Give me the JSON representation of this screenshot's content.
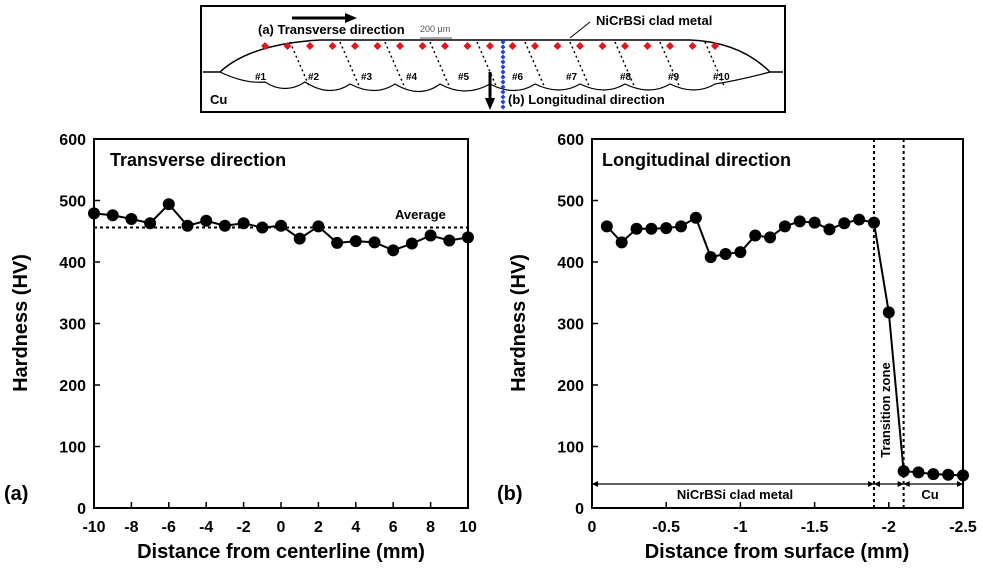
{
  "schematic": {
    "transverse_label": "(a) Transverse direction",
    "scale_label": "200 μm",
    "clad_label": "NiCrBSi clad metal",
    "substrate_label": "Cu",
    "longitudinal_label": "(b) Longitudinal direction",
    "bead_labels": [
      "#1",
      "#2",
      "#3",
      "#4",
      "#5",
      "#6",
      "#7",
      "#8",
      "#9",
      "#10"
    ]
  },
  "chart_data": [
    {
      "type": "line",
      "panel_label": "(a)",
      "title": "Transverse direction",
      "xlabel": "Distance from centerline (mm)",
      "ylabel": "Hardness (HV)",
      "xlim": [
        -10,
        10
      ],
      "ylim": [
        0,
        600
      ],
      "xticks": [
        "-10",
        "-8",
        "-6",
        "-4",
        "-2",
        "0",
        "2",
        "4",
        "6",
        "8",
        "10"
      ],
      "yticks": [
        "0",
        "100",
        "200",
        "300",
        "400",
        "500",
        "600"
      ],
      "x": [
        -10,
        -9,
        -8,
        -7,
        -6,
        -5,
        -4,
        -3,
        -2,
        -1,
        0,
        1,
        2,
        3,
        4,
        5,
        6,
        7,
        8,
        9,
        10
      ],
      "y": [
        479,
        476,
        470,
        463,
        494,
        459,
        467,
        459,
        463,
        456,
        459,
        438,
        458,
        431,
        434,
        432,
        419,
        430,
        443,
        435,
        440
      ],
      "average": {
        "label": "Average",
        "value": 456
      },
      "grid": false
    },
    {
      "type": "line",
      "panel_label": "(b)",
      "title": "Longitudinal direction",
      "xlabel": "Distance from surface (mm)",
      "ylabel": "Hardness (HV)",
      "xlim": [
        0,
        -2.5
      ],
      "ylim": [
        0,
        600
      ],
      "xticks": [
        "0",
        "-0.5",
        "-1",
        "-1.5",
        "-2",
        "-2.5"
      ],
      "yticks": [
        "0",
        "100",
        "200",
        "300",
        "400",
        "500",
        "600"
      ],
      "x": [
        -0.1,
        -0.2,
        -0.3,
        -0.4,
        -0.5,
        -0.6,
        -0.7,
        -0.8,
        -0.9,
        -1.0,
        -1.1,
        -1.2,
        -1.3,
        -1.4,
        -1.5,
        -1.6,
        -1.7,
        -1.8,
        -1.9,
        -2.0,
        -2.1,
        -2.2,
        -2.3,
        -2.4,
        -2.5
      ],
      "y": [
        458,
        432,
        454,
        454,
        455,
        458,
        472,
        408,
        413,
        416,
        443,
        440,
        458,
        466,
        464,
        453,
        463,
        469,
        464,
        318,
        60,
        58,
        55,
        54,
        53
      ],
      "zones": [
        {
          "label": "NiCrBSi clad metal",
          "from": 0,
          "to": -1.9
        },
        {
          "label": "Transition zone",
          "from": -1.9,
          "to": -2.1
        },
        {
          "label": "Cu",
          "from": -2.1,
          "to": -2.5
        }
      ],
      "grid": false
    }
  ]
}
